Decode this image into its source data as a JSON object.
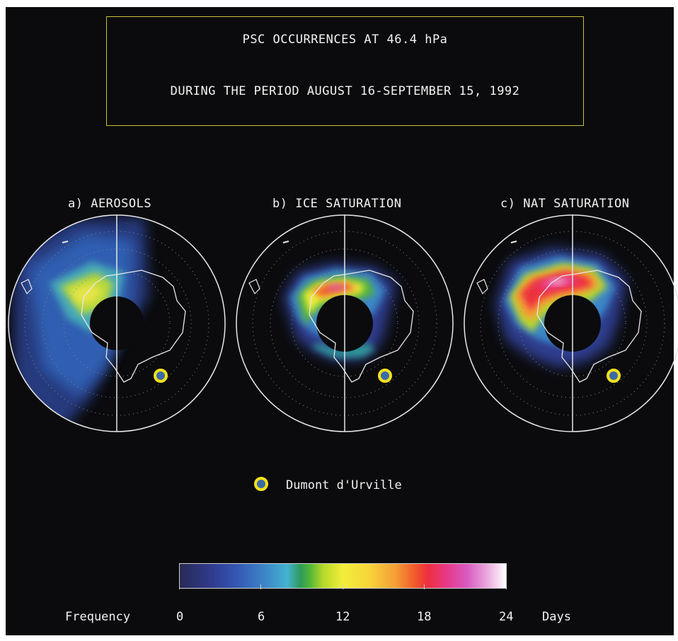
{
  "title": {
    "line1": "PSC OCCURRENCES AT 46.4 hPa",
    "line2": "DURING THE PERIOD AUGUST 16-SEPTEMBER 15, 1992"
  },
  "panels": [
    {
      "label": "a) AEROSOLS"
    },
    {
      "label": "b) ICE SATURATION"
    },
    {
      "label": "c) NAT SATURATION"
    }
  ],
  "legend": {
    "marker_label": "Dumont d'Urville",
    "marker_color": "#f2e21a"
  },
  "colorbar": {
    "title": "Frequency",
    "unit": "Days",
    "ticks": [
      "0",
      "6",
      "12",
      "18",
      "24"
    ],
    "min": 0,
    "max": 24
  },
  "colors": {
    "background": "#0b0b0d",
    "title_border": "#c9c23a",
    "map_outline": "#e8e8e8"
  }
}
